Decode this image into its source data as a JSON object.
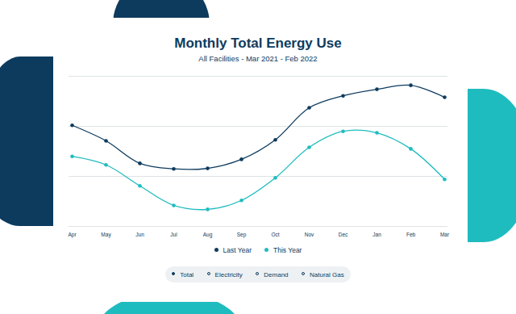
{
  "chart_data": {
    "type": "line",
    "title": "Monthly Total Energy Use",
    "subtitle": "All Facilities - Mar 2021 - Feb 2022",
    "categories": [
      "Apr",
      "May",
      "Jun",
      "Jul",
      "Aug",
      "Sep",
      "Oct",
      "Nov",
      "Dec",
      "Jan",
      "Feb",
      "Mar"
    ],
    "series": [
      {
        "name": "Last Year",
        "color": "#0d3b5e",
        "marker": "circle",
        "line_style": "solid",
        "values": [
          2.02,
          1.71,
          1.26,
          1.15,
          1.16,
          1.34,
          1.73,
          2.37,
          2.61,
          2.74,
          2.82,
          2.58
        ]
      },
      {
        "name": "This Year",
        "color": "#1fbcbf",
        "marker": "circle",
        "line_style": "solid",
        "values": [
          1.4,
          1.23,
          0.81,
          0.42,
          0.34,
          0.52,
          0.97,
          1.58,
          1.9,
          1.87,
          1.55,
          0.94
        ]
      }
    ],
    "ylim": [
      0,
      3
    ],
    "yticks": [
      0,
      1,
      2,
      3
    ],
    "grid": true,
    "tick_labels": "x",
    "filters": {
      "items": [
        "Total",
        "Electricity",
        "Demand",
        "Natural Gas"
      ],
      "selected": "Total"
    }
  }
}
